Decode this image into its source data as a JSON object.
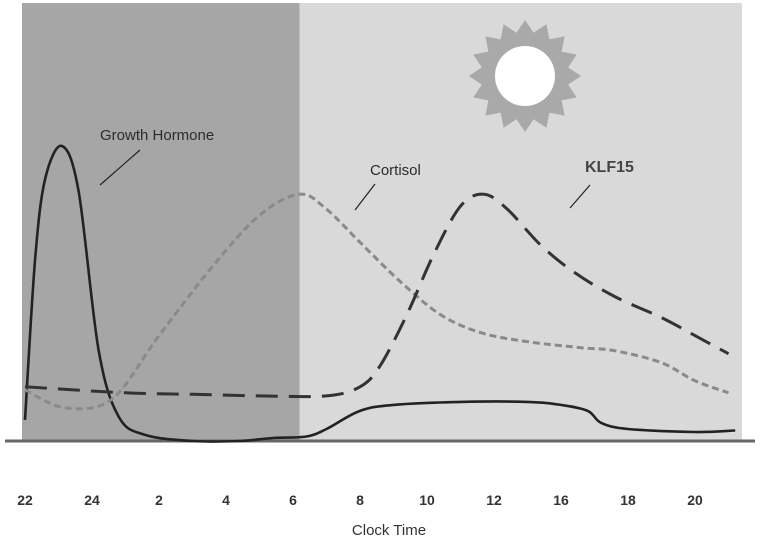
{
  "chart_data": {
    "type": "line",
    "xlabel": "Clock Time",
    "x_ticks": [
      "22",
      "24",
      "2",
      "4",
      "6",
      "8",
      "10",
      "12",
      "16",
      "18",
      "20"
    ],
    "series": [
      {
        "name": "Growth Hormone",
        "style": "solid",
        "color": "#222222",
        "points": [
          [
            0,
            0.07
          ],
          [
            0.15,
            0.6
          ],
          [
            0.3,
            0.87
          ],
          [
            0.55,
            0.98
          ],
          [
            0.8,
            0.83
          ],
          [
            1.1,
            0.3
          ],
          [
            1.4,
            0.08
          ],
          [
            1.8,
            0.02
          ],
          [
            2.5,
            0.0
          ],
          [
            3.2,
            0.0
          ],
          [
            3.7,
            0.01
          ],
          [
            4.2,
            0.015
          ],
          [
            4.5,
            0.04
          ],
          [
            5.0,
            0.1
          ],
          [
            5.5,
            0.12
          ],
          [
            6.5,
            0.13
          ],
          [
            7.5,
            0.13
          ],
          [
            8.0,
            0.12
          ],
          [
            8.4,
            0.1
          ],
          [
            8.6,
            0.06
          ],
          [
            9.0,
            0.04
          ],
          [
            10.0,
            0.03
          ],
          [
            10.6,
            0.035
          ]
        ]
      },
      {
        "name": "Cortisol",
        "style": "dotted",
        "color": "#8a8a8a",
        "points": [
          [
            0,
            0.17
          ],
          [
            0.6,
            0.11
          ],
          [
            1.3,
            0.14
          ],
          [
            2.0,
            0.35
          ],
          [
            2.8,
            0.58
          ],
          [
            3.5,
            0.75
          ],
          [
            4.1,
            0.82
          ],
          [
            4.5,
            0.77
          ],
          [
            5.0,
            0.66
          ],
          [
            5.6,
            0.53
          ],
          [
            6.2,
            0.42
          ],
          [
            6.8,
            0.36
          ],
          [
            7.5,
            0.33
          ],
          [
            8.3,
            0.31
          ],
          [
            8.8,
            0.3
          ],
          [
            9.5,
            0.26
          ],
          [
            10.0,
            0.2
          ],
          [
            10.5,
            0.16
          ]
        ]
      },
      {
        "name": "KLF15",
        "style": "dashed",
        "color": "#333333",
        "points": [
          [
            0,
            0.18
          ],
          [
            1.5,
            0.16
          ],
          [
            2.5,
            0.155
          ],
          [
            3.5,
            0.15
          ],
          [
            4.5,
            0.15
          ],
          [
            5.0,
            0.18
          ],
          [
            5.3,
            0.25
          ],
          [
            5.7,
            0.42
          ],
          [
            6.1,
            0.62
          ],
          [
            6.5,
            0.78
          ],
          [
            6.85,
            0.82
          ],
          [
            7.2,
            0.77
          ],
          [
            7.7,
            0.65
          ],
          [
            8.2,
            0.56
          ],
          [
            8.8,
            0.48
          ],
          [
            9.5,
            0.41
          ],
          [
            10.0,
            0.35
          ],
          [
            10.5,
            0.29
          ]
        ]
      }
    ],
    "shading": [
      {
        "label": "night",
        "from": 0,
        "to": 4.1,
        "color": "#a6a6a6"
      },
      {
        "label": "day",
        "from": 4.1,
        "to": 10.6,
        "color": "#d9d9d9"
      }
    ],
    "icons": [
      "moon-icon",
      "sun-icon"
    ],
    "grid": false
  }
}
